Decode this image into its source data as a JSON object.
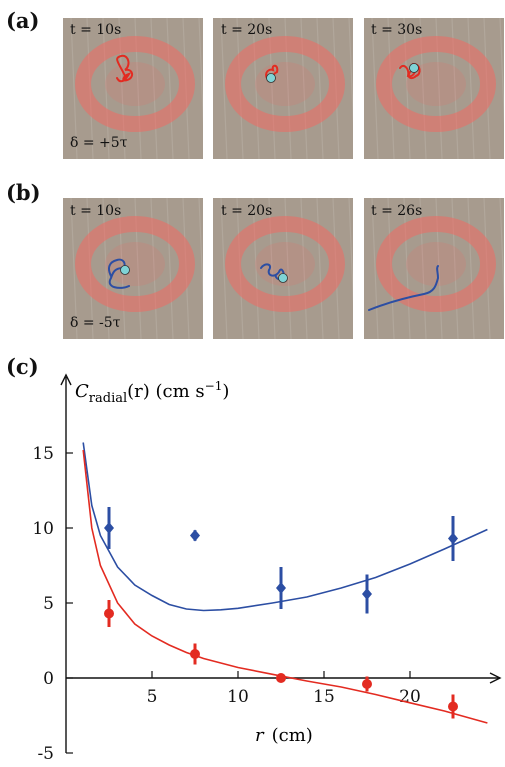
{
  "panels": {
    "a": {
      "label": "(a)",
      "delta": "δ = +5τ",
      "frames": [
        {
          "time": "t = 10s"
        },
        {
          "time": "t = 20s"
        },
        {
          "time": "t = 30s"
        }
      ]
    },
    "b": {
      "label": "(b)",
      "delta": "δ = -5τ",
      "frames": [
        {
          "time": "t = 10s"
        },
        {
          "time": "t = 20s"
        },
        {
          "time": "t = 26s"
        }
      ]
    },
    "c": {
      "label": "(c)"
    }
  },
  "colors": {
    "red_series": "#e32b21",
    "blue_series": "#2c4ea3",
    "red_curve": "#e8332a",
    "blue_curve": "#3848a8",
    "floor": "#a79b8e",
    "glow": "#f06a62"
  },
  "chart_data": {
    "type": "scatter",
    "ylabel": "C_radial(r)  (cm s^-1)",
    "ylabel_main": "C",
    "ylabel_sub": "radial",
    "ylabel_arg": "(r)  (cm s",
    "ylabel_sup": "−1",
    "ylabel_end": ")",
    "xlabel": "r  (cm)",
    "xlabel_var": "r",
    "xlabel_unit": "(cm)",
    "xlim": [
      0,
      25
    ],
    "ylim": [
      -5,
      18
    ],
    "xticks": [
      {
        "value": 5,
        "label": "5"
      },
      {
        "value": 10,
        "label": "10"
      },
      {
        "value": 15,
        "label": "15"
      },
      {
        "value": 20,
        "label": "20"
      }
    ],
    "yticks": [
      {
        "value": -5,
        "label": "-5"
      },
      {
        "value": 0,
        "label": "0"
      },
      {
        "value": 5,
        "label": "5"
      },
      {
        "value": 10,
        "label": "10"
      },
      {
        "value": 15,
        "label": "15"
      }
    ],
    "series": [
      {
        "color": "#2c4ea3",
        "marker": "diamond",
        "points": [
          {
            "x": 2.5,
            "y": 10.0,
            "err": 1.4
          },
          {
            "x": 7.5,
            "y": 9.5,
            "err": 0.35
          },
          {
            "x": 12.5,
            "y": 6.0,
            "err": 1.4
          },
          {
            "x": 17.5,
            "y": 5.6,
            "err": 1.3
          },
          {
            "x": 22.5,
            "y": 9.3,
            "err": 1.5
          }
        ],
        "fit": [
          [
            1.0,
            15.7
          ],
          [
            1.5,
            11.5
          ],
          [
            2.0,
            9.5
          ],
          [
            3.0,
            7.4
          ],
          [
            4.0,
            6.2
          ],
          [
            5.0,
            5.5
          ],
          [
            6.0,
            4.9
          ],
          [
            7.0,
            4.6
          ],
          [
            8.0,
            4.5
          ],
          [
            9.0,
            4.55
          ],
          [
            10.0,
            4.65
          ],
          [
            12.0,
            5.0
          ],
          [
            14.0,
            5.4
          ],
          [
            16.0,
            6.0
          ],
          [
            18.0,
            6.7
          ],
          [
            20.0,
            7.6
          ],
          [
            22.0,
            8.6
          ],
          [
            24.5,
            9.9
          ]
        ]
      },
      {
        "color": "#e32b21",
        "marker": "circle",
        "points": [
          {
            "x": 2.5,
            "y": 4.3,
            "err": 0.9
          },
          {
            "x": 7.5,
            "y": 1.6,
            "err": 0.7
          },
          {
            "x": 12.5,
            "y": 0.0,
            "err": 0.2
          },
          {
            "x": 17.5,
            "y": -0.4,
            "err": 0.5
          },
          {
            "x": 22.5,
            "y": -1.9,
            "err": 0.8
          }
        ],
        "fit": [
          [
            1.0,
            15.2
          ],
          [
            1.5,
            10.0
          ],
          [
            2.0,
            7.5
          ],
          [
            3.0,
            5.0
          ],
          [
            4.0,
            3.6
          ],
          [
            5.0,
            2.8
          ],
          [
            6.0,
            2.2
          ],
          [
            7.0,
            1.7
          ],
          [
            8.0,
            1.3
          ],
          [
            10.0,
            0.7
          ],
          [
            12.0,
            0.25
          ],
          [
            14.0,
            -0.2
          ],
          [
            16.0,
            -0.6
          ],
          [
            18.0,
            -1.1
          ],
          [
            20.0,
            -1.65
          ],
          [
            22.0,
            -2.2
          ],
          [
            24.5,
            -3.0
          ]
        ]
      }
    ]
  }
}
